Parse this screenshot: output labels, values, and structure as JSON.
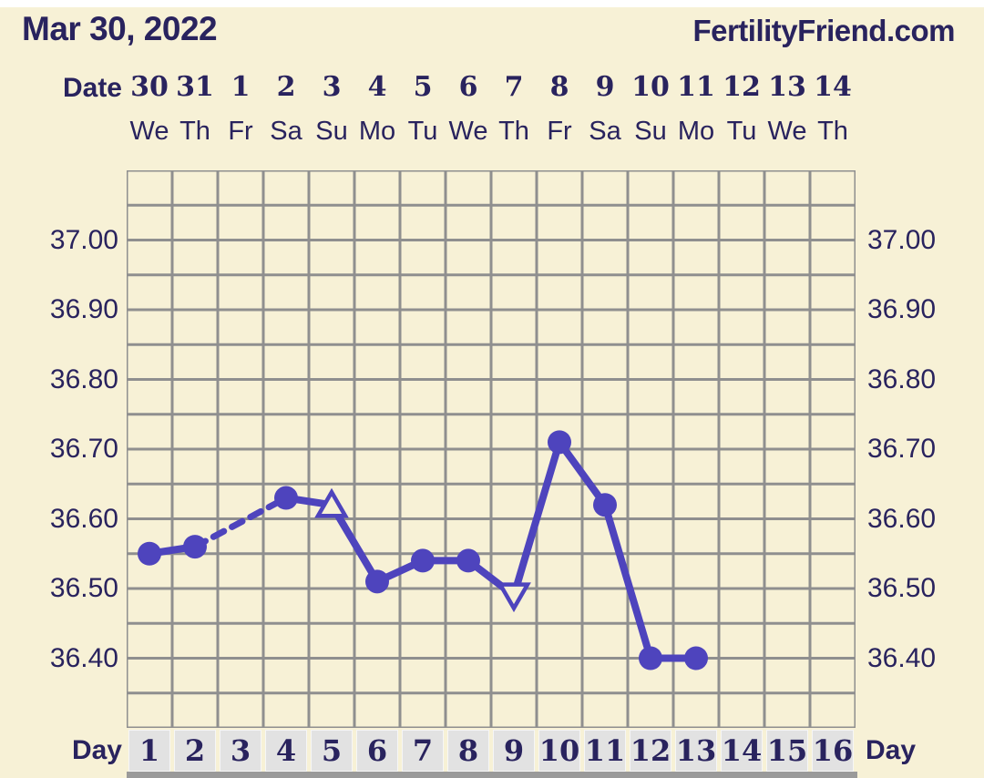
{
  "header": {
    "title": "Mar 30, 2022",
    "brand": "FertilityFriend.com"
  },
  "axes": {
    "date_label": "Date",
    "day_label": "Day",
    "dates": [
      "30",
      "31",
      "1",
      "2",
      "3",
      "4",
      "5",
      "6",
      "7",
      "8",
      "9",
      "10",
      "11",
      "12",
      "13",
      "14"
    ],
    "weekdays": [
      "We",
      "Th",
      "Fr",
      "Sa",
      "Su",
      "Mo",
      "Tu",
      "We",
      "Th",
      "Fr",
      "Sa",
      "Su",
      "Mo",
      "Tu",
      "We",
      "Th"
    ],
    "cycle_days": [
      "1",
      "2",
      "3",
      "4",
      "5",
      "6",
      "7",
      "8",
      "9",
      "10",
      "11",
      "12",
      "13",
      "14",
      "15",
      "16"
    ],
    "y_tick_labels": [
      "37.00",
      "36.90",
      "36.80",
      "36.70",
      "36.60",
      "36.50",
      "36.40"
    ]
  },
  "chart_data": {
    "type": "line",
    "title": "Mar 30, 2022",
    "xlabel": "Day",
    "ylabel": "",
    "x_cycle_days": [
      1,
      2,
      3,
      4,
      5,
      6,
      7,
      8,
      9,
      10,
      11,
      12,
      13,
      14,
      15,
      16
    ],
    "x_dates": [
      "30",
      "31",
      "1",
      "2",
      "3",
      "4",
      "5",
      "6",
      "7",
      "8",
      "9",
      "10",
      "11",
      "12",
      "13",
      "14"
    ],
    "x_weekdays": [
      "We",
      "Th",
      "Fr",
      "Sa",
      "Su",
      "Mo",
      "Tu",
      "We",
      "Th",
      "Fr",
      "Sa",
      "Su",
      "Mo",
      "Tu",
      "We",
      "Th"
    ],
    "ylim": [
      36.3,
      37.1
    ],
    "y_gridline_step": 0.05,
    "y_tick_step": 0.1,
    "grid": true,
    "legend": "none",
    "series": [
      {
        "name": "temperature-celsius",
        "color": "#4e44bd",
        "points": [
          {
            "day": 1,
            "value": 36.55,
            "marker": "circle"
          },
          {
            "day": 2,
            "value": 36.56,
            "marker": "circle"
          },
          {
            "day": 3,
            "value": null,
            "marker": null
          },
          {
            "day": 4,
            "value": 36.63,
            "marker": "circle"
          },
          {
            "day": 5,
            "value": 36.62,
            "marker": "triangle-up-open"
          },
          {
            "day": 6,
            "value": 36.51,
            "marker": "circle"
          },
          {
            "day": 7,
            "value": 36.54,
            "marker": "circle"
          },
          {
            "day": 8,
            "value": 36.54,
            "marker": "circle"
          },
          {
            "day": 9,
            "value": 36.49,
            "marker": "triangle-down-open"
          },
          {
            "day": 10,
            "value": 36.71,
            "marker": "circle"
          },
          {
            "day": 11,
            "value": 36.62,
            "marker": "circle"
          },
          {
            "day": 12,
            "value": 36.4,
            "marker": "circle"
          },
          {
            "day": 13,
            "value": 36.4,
            "marker": "circle"
          },
          {
            "day": 14,
            "value": null,
            "marker": null
          },
          {
            "day": 15,
            "value": null,
            "marker": null
          },
          {
            "day": 16,
            "value": null,
            "marker": null
          }
        ]
      }
    ],
    "missing_days": [
      3,
      14,
      15,
      16
    ],
    "dashed_segment_over_missing_day": [
      2,
      4
    ]
  },
  "colors": {
    "background": "#f7f1d6",
    "text_navy": "#29235e",
    "line_purple": "#4e44bd",
    "grid_gray": "#8f8f8f",
    "day_cell_bg": "#e2e2e2",
    "day_row_shadow": "#9a9a9a",
    "top_strip": "#ffffff"
  }
}
